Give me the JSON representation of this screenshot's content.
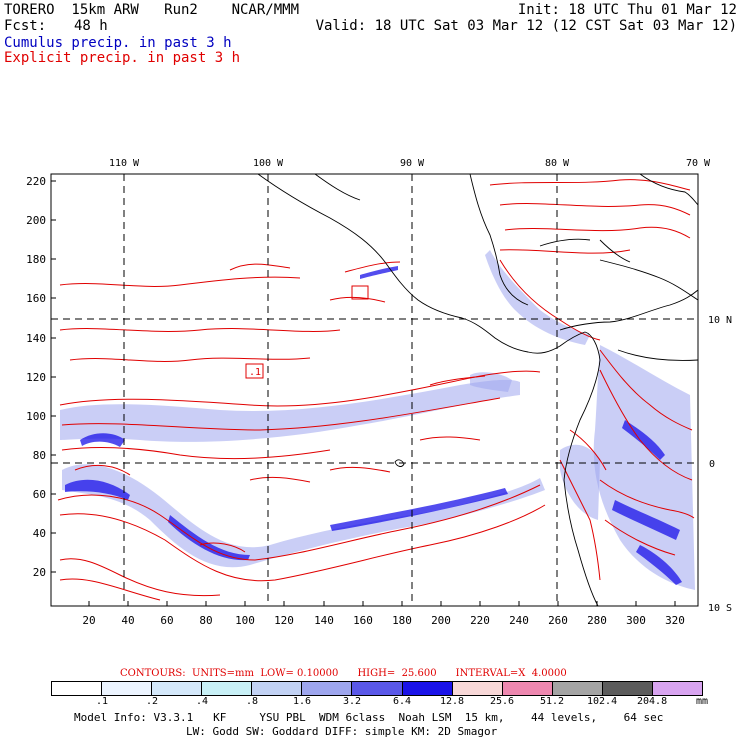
{
  "header": {
    "model": "TORERO  15km ARW   Run2    NCAR/MMM",
    "fcst_label": "Fcst:",
    "fcst_value": "48 h",
    "init": "Init: 18 UTC Thu 01 Mar 12",
    "valid": "Valid: 18 UTC Sat 03 Mar 12 (12 CST Sat 03 Mar 12)",
    "cumulus": "Cumulus precip. in past 3 h",
    "explicit": "Explicit precip. in past 3 h"
  },
  "map": {
    "top_lon_labels": [
      "110 W",
      "100 W",
      "90 W",
      "80 W",
      "70 W"
    ],
    "left_ticks": [
      "220",
      "200",
      "180",
      "160",
      "140",
      "120",
      "100",
      "80",
      "60",
      "40",
      "20"
    ],
    "bottom_ticks": [
      "20",
      "40",
      "60",
      "80",
      "100",
      "120",
      "140",
      "160",
      "180",
      "200",
      "220",
      "240",
      "260",
      "280",
      "300",
      "320"
    ],
    "right_lat_labels": [
      "10 N",
      "0",
      "10 S"
    ],
    "marker_label": ".1"
  },
  "footer": {
    "contours": "CONTOURS:  UNITS=mm  LOW= 0.10000      HIGH=  25.600      INTERVAL=X  4.0000",
    "scale_values": [
      ".1",
      ".2",
      ".4",
      ".8",
      "1.6",
      "3.2",
      "6.4",
      "12.8",
      "25.6",
      "51.2",
      "102.4",
      "204.8"
    ],
    "scale_unit": "mm",
    "scale_colors": [
      "#ffffff",
      "#ecf4ff",
      "#d4e8fa",
      "#c8f0f6",
      "#c2d2f4",
      "#9ea6ee",
      "#5a58e8",
      "#1a12e8",
      "#f8d8d8",
      "#ee88b0",
      "#a4a4a4",
      "#5c5c5c",
      "#d8a4f0"
    ],
    "model_info_1": "Model Info: V3.3.1   KF     YSU PBL  WDM 6class  Noah LSM  15 km,    44 levels,    64 sec",
    "model_info_2": "LW: Godd SW: Goddard DIFF: simple KM: 2D Smagor"
  }
}
